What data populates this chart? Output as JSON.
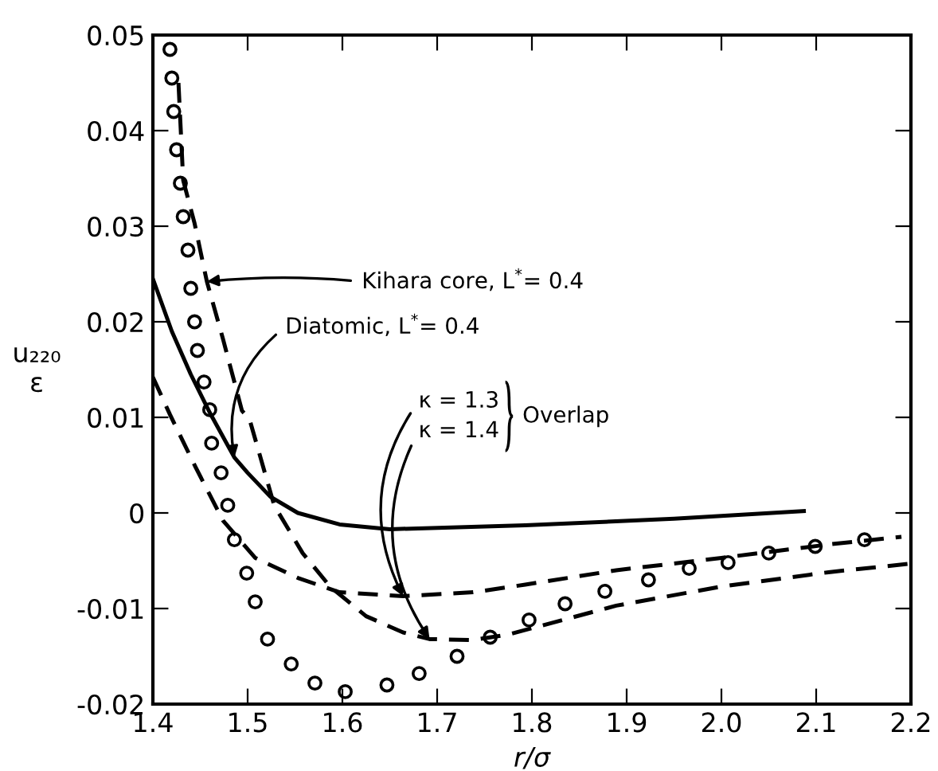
{
  "chart_data": {
    "type": "line",
    "xlabel": "r/σ",
    "ylabel": "u₂₂₀\nε",
    "xlim": [
      1.4,
      2.2
    ],
    "ylim": [
      -0.02,
      0.05
    ],
    "xticks": [
      1.4,
      1.5,
      1.6,
      1.7,
      1.8,
      1.9,
      {
        "value": 2,
        "label": "2.0"
      },
      2.1,
      2.2
    ],
    "yticks": [
      -0.02,
      -0.01,
      0,
      0.01,
      0.02,
      0.03,
      0.04,
      0.05
    ],
    "grid": false,
    "series": [
      {
        "type": "scatter",
        "marker": "circle",
        "color": "#000000",
        "x": [
          1.418,
          1.42,
          1.422,
          1.425,
          1.429,
          1.432,
          1.437,
          1.44,
          1.444,
          1.447,
          1.454,
          1.46,
          1.462,
          1.472,
          1.479,
          1.486,
          1.499,
          1.508,
          1.521,
          1.546,
          1.571,
          1.603,
          1.647,
          1.681,
          1.721,
          1.756,
          1.797,
          1.835,
          1.877,
          1.923,
          1.966,
          2.007,
          2.05,
          2.099,
          2.151
        ],
        "values": [
          0.0485,
          0.0455,
          0.042,
          0.038,
          0.0345,
          0.031,
          0.0275,
          0.0235,
          0.02,
          0.017,
          0.0137,
          0.0108,
          0.0073,
          0.0042,
          0.0008,
          -0.0028,
          -0.0063,
          -0.0093,
          -0.0132,
          -0.0158,
          -0.0178,
          -0.0187,
          -0.018,
          -0.0168,
          -0.015,
          -0.013,
          -0.0112,
          -0.0095,
          -0.0082,
          -0.007,
          -0.0058,
          -0.0052,
          -0.0042,
          -0.0035,
          -0.0028
        ]
      },
      {
        "type": "line",
        "line_style": "solid",
        "color": "#000000",
        "x": [
          1.4,
          1.42,
          1.44,
          1.46,
          1.486,
          1.5,
          1.524,
          1.553,
          1.597,
          1.65,
          1.793,
          1.95,
          2.087
        ],
        "values": [
          0.0245,
          0.019,
          0.0145,
          0.0105,
          0.0058,
          0.0042,
          0.0017,
          0.0,
          -0.0012,
          -0.0017,
          -0.0013,
          -0.0006,
          0.0002
        ]
      },
      {
        "type": "line",
        "line_style": "dashed",
        "color": "#000000",
        "x": [
          1.427,
          1.432,
          1.444,
          1.457,
          1.474,
          1.494,
          1.502,
          1.528,
          1.558,
          1.587,
          1.625,
          1.664,
          1.692,
          1.738,
          1.776,
          1.889,
          2.0,
          2.113,
          2.2
        ],
        "values": [
          0.045,
          0.0348,
          0.0303,
          0.0242,
          0.0182,
          0.0107,
          0.0098,
          0.0008,
          -0.0042,
          -0.0077,
          -0.0108,
          -0.0125,
          -0.0132,
          -0.0133,
          -0.0127,
          -0.0097,
          -0.0077,
          -0.0062,
          -0.0053
        ]
      },
      {
        "type": "line",
        "line_style": "dashed",
        "color": "#000000",
        "x": [
          1.4,
          1.418,
          1.445,
          1.474,
          1.508,
          1.553,
          1.597,
          1.664,
          1.738,
          1.793,
          1.889,
          2.0,
          2.113,
          2.19
        ],
        "values": [
          0.0142,
          0.0103,
          0.0048,
          -0.0008,
          -0.0047,
          -0.0068,
          -0.0083,
          -0.0087,
          -0.0083,
          -0.0075,
          -0.006,
          -0.0047,
          -0.0033,
          -0.0025
        ]
      }
    ],
    "annotations": [
      {
        "text": "Kihara core, L$^{*}$= 0.4",
        "x": 1.457,
        "y": 0.0242
      },
      {
        "text": "Diatomic, L$^{*}$= 0.4",
        "x": 1.486,
        "y": 0.0058
      },
      {
        "text": "κ = 1.3",
        "x": 1.664,
        "y": -0.0087
      },
      {
        "text": "κ = 1.4",
        "x": 1.692,
        "y": -0.0132
      },
      "Overlap"
    ]
  }
}
